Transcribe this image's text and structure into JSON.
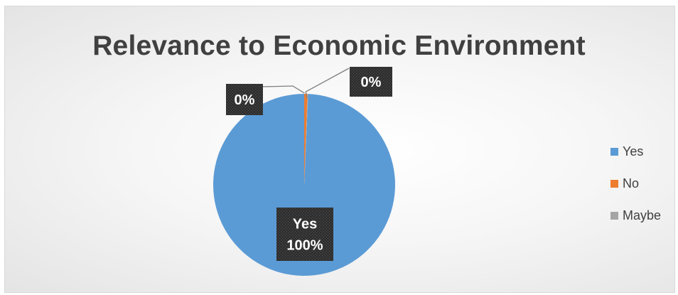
{
  "chart_data": {
    "type": "pie",
    "title": "Relevance to Economic Environment",
    "categories": [
      "Yes",
      "No",
      "Maybe"
    ],
    "values": [
      100,
      0,
      0
    ],
    "display_values": [
      0.993,
      0.006,
      0.001
    ],
    "data_labels": {
      "yes": {
        "category": "Yes",
        "value": "100%"
      },
      "no": {
        "value": "0%"
      },
      "maybe": {
        "value": "0%"
      }
    },
    "legend": {
      "position": "right",
      "entries": [
        {
          "label": "Yes",
          "color": "#5b9bd5"
        },
        {
          "label": "No",
          "color": "#ed7d31"
        },
        {
          "label": "Maybe",
          "color": "#a5a5a5"
        }
      ]
    }
  }
}
